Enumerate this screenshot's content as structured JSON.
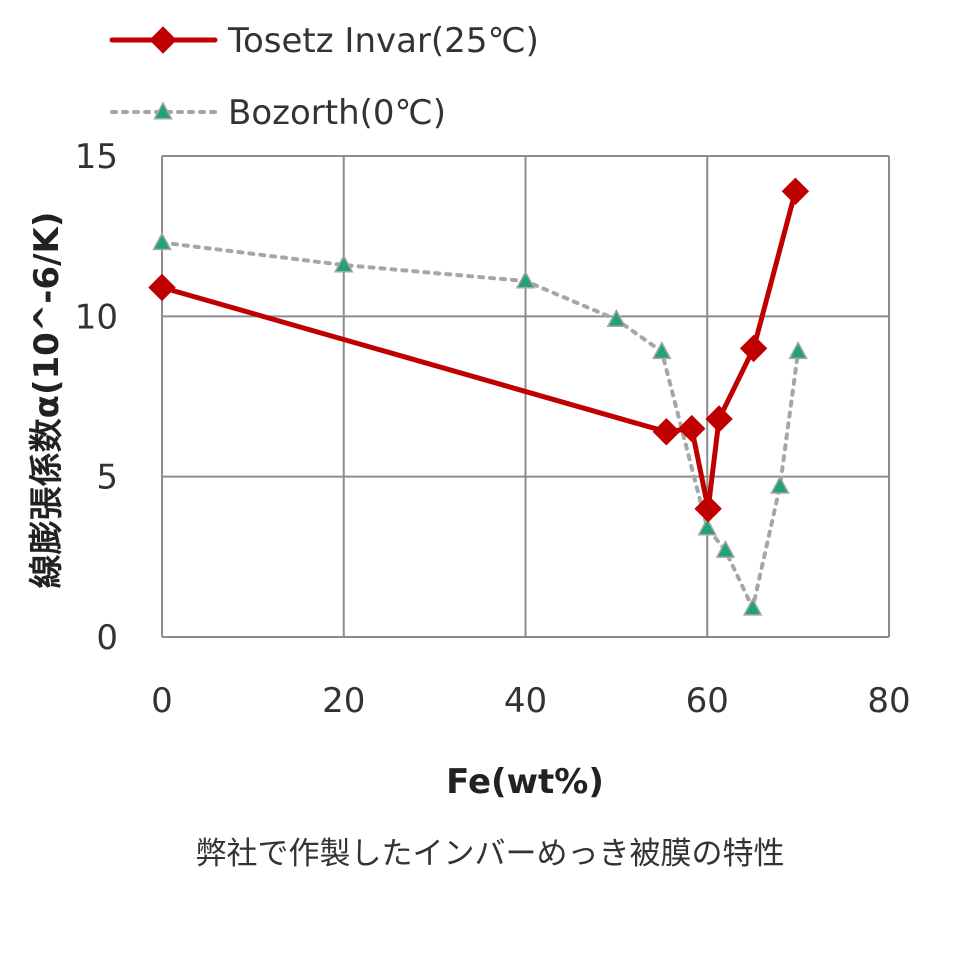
{
  "chart_data": {
    "type": "line",
    "xlabel": "Fe(wt%)",
    "ylabel": "線膨張係数α(10^-6/K)",
    "xlim": [
      0,
      80
    ],
    "ylim": [
      0,
      15
    ],
    "xticks": [
      "0",
      "20",
      "40",
      "60",
      "80"
    ],
    "yticks": [
      "0",
      "5",
      "10",
      "15"
    ],
    "grid": true,
    "legend_position": "top-left",
    "series": [
      {
        "name": "Tosetz Invar(25℃)",
        "color": "#c00000",
        "marker": "diamond",
        "line_style": "solid",
        "x": [
          0,
          55.5,
          58.3,
          60.1,
          61.3,
          65.1,
          69.7
        ],
        "y": [
          10.9,
          6.4,
          6.5,
          4.0,
          6.8,
          9.0,
          13.9
        ]
      },
      {
        "name": "Bozorth(0℃)",
        "color": "#a6a6a6",
        "marker_color": "#21a374",
        "marker": "triangle",
        "line_style": "dotted",
        "x": [
          0,
          20,
          40,
          50,
          55,
          60,
          62,
          65,
          68,
          70
        ],
        "y": [
          12.3,
          11.6,
          11.1,
          9.9,
          8.9,
          3.4,
          2.7,
          0.9,
          4.7,
          8.9
        ]
      }
    ]
  },
  "caption": "弊社で作製したインバーめっき被膜の特性"
}
